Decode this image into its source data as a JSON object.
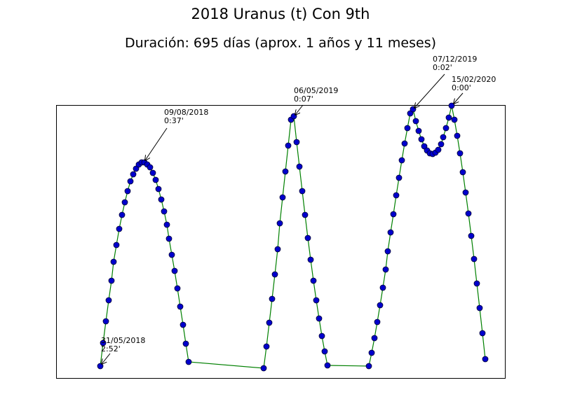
{
  "chart_data": {
    "type": "line",
    "title": "2018 Uranus (t) Con 9th",
    "subtitle": "Duración: 695 días (aprox. 1 años y 11 meses)",
    "xlim": [
      0,
      640
    ],
    "ylim": [
      0,
      390
    ],
    "series": [
      {
        "color": "#008000",
        "marker_color": "#0000cc",
        "x": [
          63,
          67,
          71,
          75,
          79,
          82,
          86,
          90,
          94,
          98,
          102,
          106,
          110,
          114,
          118,
          122,
          126,
          130,
          134,
          138,
          142,
          146,
          150,
          154,
          158,
          161,
          165,
          169,
          173,
          177,
          181,
          185,
          189,
          296,
          300,
          304,
          308,
          312,
          316,
          319,
          323,
          327,
          331,
          335,
          339,
          343,
          347,
          351,
          355,
          359,
          363,
          367,
          371,
          375,
          379,
          383,
          387,
          446,
          450,
          454,
          458,
          462,
          466,
          470,
          473,
          477,
          481,
          485,
          489,
          493,
          497,
          501,
          505,
          509,
          513,
          517,
          521,
          525,
          529,
          533,
          537,
          541,
          545,
          549,
          552,
          556,
          560,
          564,
          568,
          572,
          576,
          580,
          584,
          588,
          592,
          596,
          600,
          604,
          608,
          612
        ],
        "values": [
          17,
          50,
          81,
          111,
          139,
          166,
          190,
          213,
          233,
          251,
          267,
          281,
          291,
          299,
          305,
          308,
          308,
          305,
          301,
          293,
          283,
          270,
          255,
          238,
          219,
          199,
          176,
          153,
          128,
          102,
          76,
          49,
          23,
          14,
          45,
          79,
          113,
          148,
          184,
          221,
          258,
          295,
          332,
          369,
          374,
          337,
          302,
          267,
          233,
          200,
          169,
          139,
          111,
          85,
          60,
          38,
          18,
          17,
          36,
          57,
          80,
          104,
          129,
          155,
          181,
          208,
          234,
          261,
          286,
          311,
          335,
          357,
          378,
          384,
          367,
          353,
          341,
          331,
          325,
          321,
          320,
          322,
          326,
          334,
          344,
          357,
          372,
          389,
          369,
          346,
          321,
          294,
          265,
          235,
          203,
          170,
          135,
          100,
          64,
          27
        ]
      }
    ],
    "annotations": [
      {
        "date": "31/05/2018",
        "time": "2:52'"
      },
      {
        "date": "09/08/2018",
        "time": "0:37'"
      },
      {
        "date": "06/05/2019",
        "time": "0:07'"
      },
      {
        "date": "07/12/2019",
        "time": "0:02'"
      },
      {
        "date": "15/02/2020",
        "time": "0:00'"
      }
    ]
  }
}
